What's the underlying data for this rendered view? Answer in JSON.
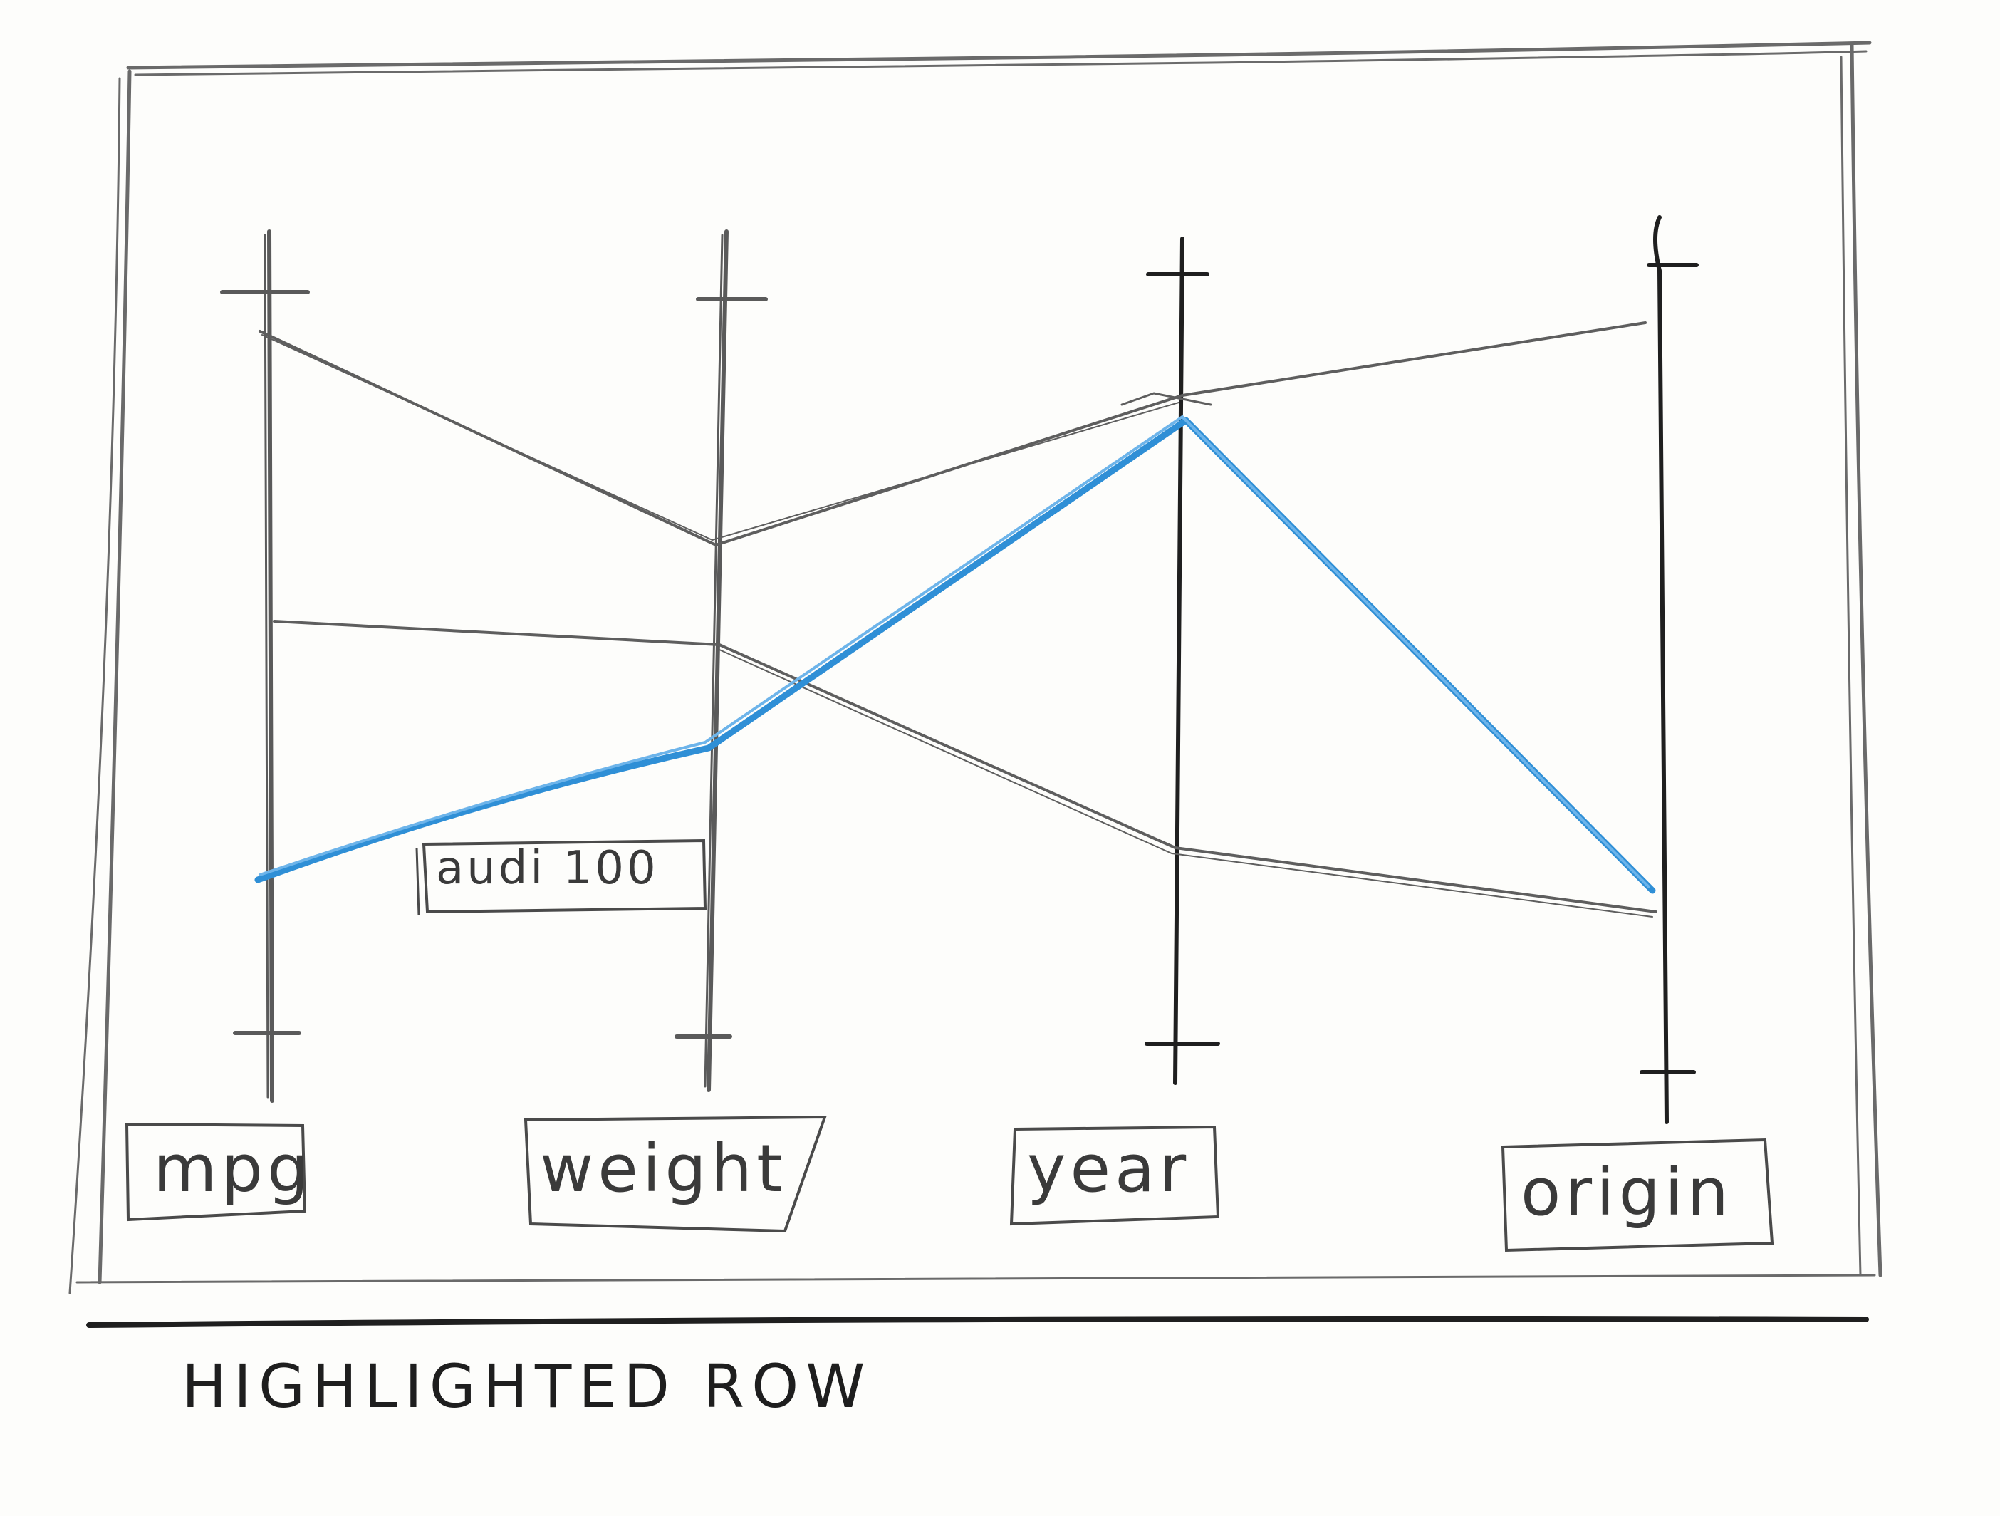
{
  "sketch": {
    "axes": [
      {
        "id": "mpg",
        "label": "mpg"
      },
      {
        "id": "weight",
        "label": "weight"
      },
      {
        "id": "year",
        "label": "year"
      },
      {
        "id": "origin",
        "label": "origin"
      }
    ],
    "highlight_label": "audi 100",
    "caption": "HIGHLIGHTED ROW",
    "colors": {
      "pencil": "#5a5a5a",
      "dark_pencil": "#1f1f1f",
      "highlight": "#2f8fd6",
      "paper": "#fdfdfb"
    }
  }
}
